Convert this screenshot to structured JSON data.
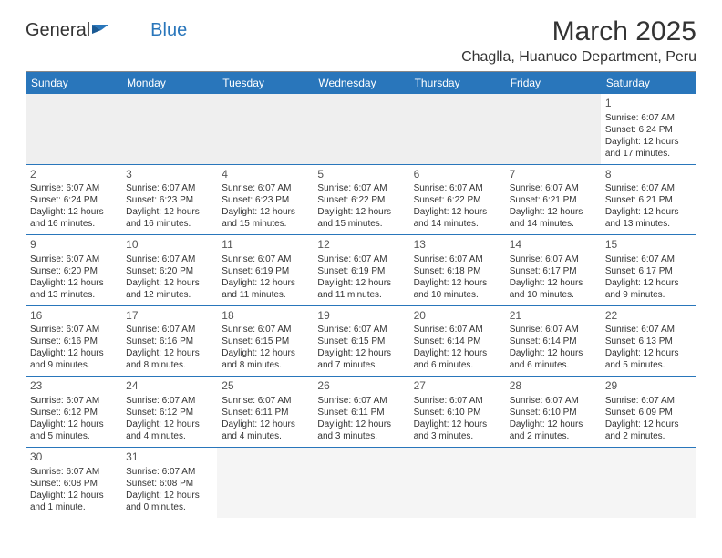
{
  "logo": {
    "text1": "General",
    "text2": "Blue",
    "shape_color": "#2976bb"
  },
  "title": "March 2025",
  "subtitle": "Chaglla, Huanuco Department, Peru",
  "colors": {
    "header_bg": "#2976bb",
    "header_text": "#ffffff",
    "row_divider": "#2976bb",
    "empty_bg": "#efefef",
    "text": "#333333"
  },
  "typography": {
    "title_fontsize": 30,
    "subtitle_fontsize": 16,
    "dayhead_fontsize": 12,
    "daynum_fontsize": 12,
    "body_fontsize": 10
  },
  "day_headers": [
    "Sunday",
    "Monday",
    "Tuesday",
    "Wednesday",
    "Thursday",
    "Friday",
    "Saturday"
  ],
  "weeks": [
    [
      null,
      null,
      null,
      null,
      null,
      null,
      {
        "n": "1",
        "sunrise": "6:07 AM",
        "sunset": "6:24 PM",
        "daylight": "12 hours and 17 minutes."
      }
    ],
    [
      {
        "n": "2",
        "sunrise": "6:07 AM",
        "sunset": "6:24 PM",
        "daylight": "12 hours and 16 minutes."
      },
      {
        "n": "3",
        "sunrise": "6:07 AM",
        "sunset": "6:23 PM",
        "daylight": "12 hours and 16 minutes."
      },
      {
        "n": "4",
        "sunrise": "6:07 AM",
        "sunset": "6:23 PM",
        "daylight": "12 hours and 15 minutes."
      },
      {
        "n": "5",
        "sunrise": "6:07 AM",
        "sunset": "6:22 PM",
        "daylight": "12 hours and 15 minutes."
      },
      {
        "n": "6",
        "sunrise": "6:07 AM",
        "sunset": "6:22 PM",
        "daylight": "12 hours and 14 minutes."
      },
      {
        "n": "7",
        "sunrise": "6:07 AM",
        "sunset": "6:21 PM",
        "daylight": "12 hours and 14 minutes."
      },
      {
        "n": "8",
        "sunrise": "6:07 AM",
        "sunset": "6:21 PM",
        "daylight": "12 hours and 13 minutes."
      }
    ],
    [
      {
        "n": "9",
        "sunrise": "6:07 AM",
        "sunset": "6:20 PM",
        "daylight": "12 hours and 13 minutes."
      },
      {
        "n": "10",
        "sunrise": "6:07 AM",
        "sunset": "6:20 PM",
        "daylight": "12 hours and 12 minutes."
      },
      {
        "n": "11",
        "sunrise": "6:07 AM",
        "sunset": "6:19 PM",
        "daylight": "12 hours and 11 minutes."
      },
      {
        "n": "12",
        "sunrise": "6:07 AM",
        "sunset": "6:19 PM",
        "daylight": "12 hours and 11 minutes."
      },
      {
        "n": "13",
        "sunrise": "6:07 AM",
        "sunset": "6:18 PM",
        "daylight": "12 hours and 10 minutes."
      },
      {
        "n": "14",
        "sunrise": "6:07 AM",
        "sunset": "6:17 PM",
        "daylight": "12 hours and 10 minutes."
      },
      {
        "n": "15",
        "sunrise": "6:07 AM",
        "sunset": "6:17 PM",
        "daylight": "12 hours and 9 minutes."
      }
    ],
    [
      {
        "n": "16",
        "sunrise": "6:07 AM",
        "sunset": "6:16 PM",
        "daylight": "12 hours and 9 minutes."
      },
      {
        "n": "17",
        "sunrise": "6:07 AM",
        "sunset": "6:16 PM",
        "daylight": "12 hours and 8 minutes."
      },
      {
        "n": "18",
        "sunrise": "6:07 AM",
        "sunset": "6:15 PM",
        "daylight": "12 hours and 8 minutes."
      },
      {
        "n": "19",
        "sunrise": "6:07 AM",
        "sunset": "6:15 PM",
        "daylight": "12 hours and 7 minutes."
      },
      {
        "n": "20",
        "sunrise": "6:07 AM",
        "sunset": "6:14 PM",
        "daylight": "12 hours and 6 minutes."
      },
      {
        "n": "21",
        "sunrise": "6:07 AM",
        "sunset": "6:14 PM",
        "daylight": "12 hours and 6 minutes."
      },
      {
        "n": "22",
        "sunrise": "6:07 AM",
        "sunset": "6:13 PM",
        "daylight": "12 hours and 5 minutes."
      }
    ],
    [
      {
        "n": "23",
        "sunrise": "6:07 AM",
        "sunset": "6:12 PM",
        "daylight": "12 hours and 5 minutes."
      },
      {
        "n": "24",
        "sunrise": "6:07 AM",
        "sunset": "6:12 PM",
        "daylight": "12 hours and 4 minutes."
      },
      {
        "n": "25",
        "sunrise": "6:07 AM",
        "sunset": "6:11 PM",
        "daylight": "12 hours and 4 minutes."
      },
      {
        "n": "26",
        "sunrise": "6:07 AM",
        "sunset": "6:11 PM",
        "daylight": "12 hours and 3 minutes."
      },
      {
        "n": "27",
        "sunrise": "6:07 AM",
        "sunset": "6:10 PM",
        "daylight": "12 hours and 3 minutes."
      },
      {
        "n": "28",
        "sunrise": "6:07 AM",
        "sunset": "6:10 PM",
        "daylight": "12 hours and 2 minutes."
      },
      {
        "n": "29",
        "sunrise": "6:07 AM",
        "sunset": "6:09 PM",
        "daylight": "12 hours and 2 minutes."
      }
    ],
    [
      {
        "n": "30",
        "sunrise": "6:07 AM",
        "sunset": "6:08 PM",
        "daylight": "12 hours and 1 minute."
      },
      {
        "n": "31",
        "sunrise": "6:07 AM",
        "sunset": "6:08 PM",
        "daylight": "12 hours and 0 minutes."
      },
      null,
      null,
      null,
      null,
      null
    ]
  ],
  "labels": {
    "sunrise": "Sunrise:",
    "sunset": "Sunset:",
    "daylight": "Daylight:"
  }
}
